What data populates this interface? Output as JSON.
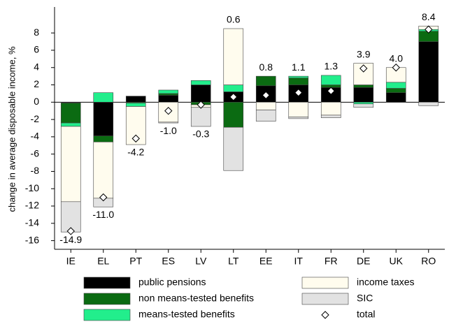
{
  "chart_data": {
    "type": "bar",
    "y_label": "change in average disposable income, %",
    "categories": [
      "IE",
      "EL",
      "PT",
      "ES",
      "LV",
      "LT",
      "EE",
      "IT",
      "FR",
      "DE",
      "UK",
      "RO"
    ],
    "series": [
      {
        "name": "public pensions",
        "color": "#000000",
        "values": [
          -0.1,
          -3.9,
          0.7,
          0.8,
          2.0,
          1.2,
          1.9,
          2.0,
          1.7,
          1.7,
          1.1,
          7.0
        ]
      },
      {
        "name": "non means-tested benefits",
        "color": "#0b6b12",
        "values": [
          -2.3,
          -0.7,
          -0.1,
          0.2,
          -0.3,
          -2.9,
          1.1,
          0.8,
          0.3,
          0.3,
          0.5,
          1.2
        ]
      },
      {
        "name": "means-tested benefits",
        "color": "#22ee8c",
        "values": [
          -0.4,
          1.1,
          -0.4,
          0.4,
          0.5,
          0.8,
          0,
          0.2,
          1.1,
          -0.2,
          0.7,
          0.2
        ]
      },
      {
        "name": "income taxes",
        "color": "#fffcee",
        "values": [
          -8.7,
          -6.5,
          -4.4,
          -2.3,
          -0.3,
          6.5,
          -0.9,
          -1.7,
          -1.5,
          2.5,
          1.7,
          0.4
        ]
      },
      {
        "name": "SIC",
        "color": "#e2e2e2",
        "values": [
          -3.5,
          -1.0,
          0,
          -0.1,
          -2.2,
          -5.0,
          -1.3,
          -0.2,
          -0.3,
          -0.4,
          0,
          -0.4
        ]
      }
    ],
    "total": {
      "name": "total",
      "values": [
        -14.9,
        -11.0,
        -4.2,
        -1.0,
        -0.3,
        0.6,
        0.8,
        1.1,
        1.3,
        3.9,
        4.0,
        8.4
      ],
      "value_labels": [
        "-14.9",
        "-11.0",
        "-4.2",
        "-1.0",
        "-0.3",
        "0.6",
        "0.8",
        "1.1",
        "1.3",
        "3.9",
        "4.0",
        "8.4"
      ]
    },
    "ylim": [
      -17,
      11
    ],
    "yticks": [
      -16,
      -14,
      -12,
      -10,
      -8,
      -6,
      -4,
      -2,
      0,
      2,
      4,
      6,
      8
    ],
    "legend": "bottom"
  }
}
